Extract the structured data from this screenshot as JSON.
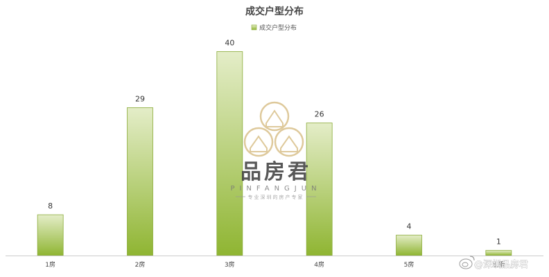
{
  "chart_data": {
    "type": "bar",
    "title": "成交户型分布",
    "legend": {
      "entries": [
        "成交户型分布"
      ],
      "placement": "top-center"
    },
    "categories": [
      "1房",
      "2房",
      "3房",
      "4房",
      "5房",
      "别墅"
    ],
    "series": [
      {
        "name": "成交户型分布",
        "values": [
          8,
          29,
          40,
          26,
          4,
          1
        ]
      }
    ],
    "ylim": [
      0,
      44
    ],
    "grid": false,
    "data_labels": true,
    "colors": {
      "bar_top": "#e4edc8",
      "bar_bottom": "#8fb532",
      "bar_stroke": "#8aab38"
    }
  },
  "watermark": {
    "brand_cn": "品房君",
    "brand_en": "PINFANGJUN",
    "slogan": "专业深圳的房产专家",
    "logo_icon": "three-house-circles-icon"
  },
  "credit": {
    "icon": "weibo-icon",
    "text": "@深圳品房君"
  }
}
